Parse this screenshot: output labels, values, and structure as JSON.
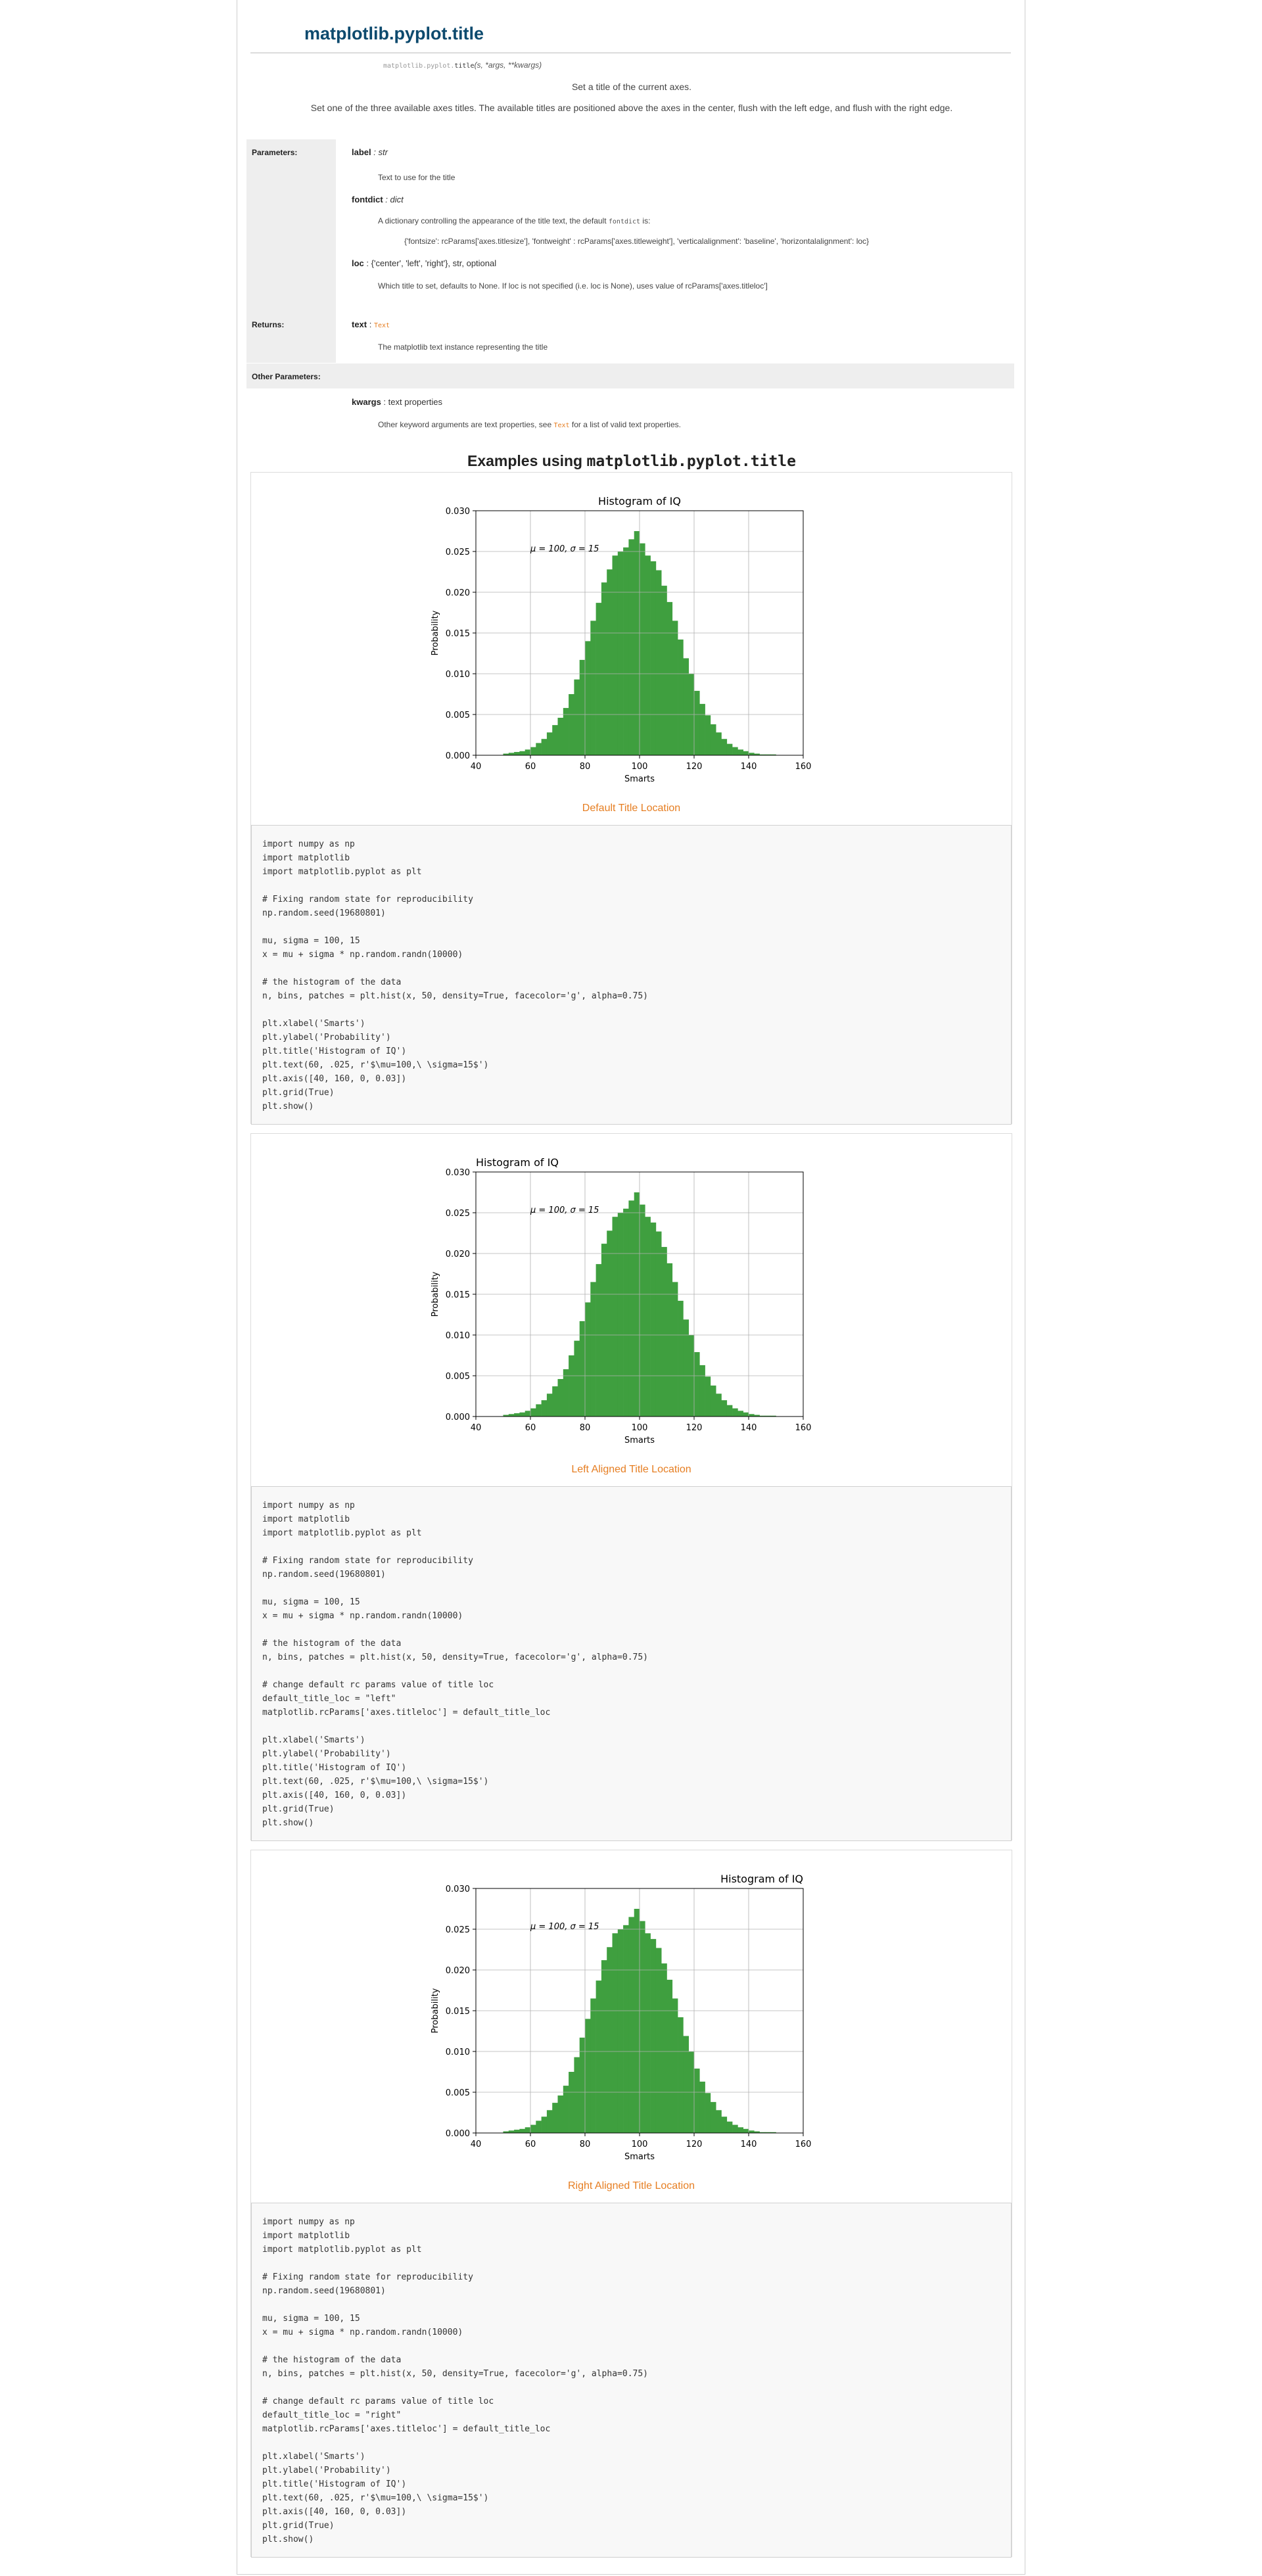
{
  "header": {
    "title": "matplotlib.pyplot.title",
    "signature_module": "matplotlib.pyplot.",
    "signature_name": "title",
    "signature_args": "(s, *args, **kwargs)",
    "description_1": "Set a title of the current axes.",
    "description_2": "Set one of the three available axes titles. The available titles are positioned above the axes in the center, flush with the left edge, and flush with the right edge."
  },
  "params": {
    "parameters_label": "Parameters:",
    "returns_label": "Returns:",
    "other_label": "Other Parameters:",
    "label_name": "label",
    "label_type": " : str",
    "label_desc": "Text to use for the title",
    "fontdict_name": "fontdict",
    "fontdict_type": " : dict",
    "fontdict_desc_pre": "A dictionary controlling the appearance of the title text, the default ",
    "fontdict_desc_code": "fontdict",
    "fontdict_desc_post": " is:",
    "fontdict_value": "{'fontsize': rcParams['axes.titlesize'], 'fontweight' : rcParams['axes.titleweight'], 'verticalalignment': 'baseline', 'horizontalalignment': loc}",
    "loc_name": "loc",
    "loc_type": " : {'center', 'left', 'right'}, str, optional",
    "loc_desc": "Which title to set, defaults to None. If loc is not specified (i.e. loc is None), uses value of rcParams['axes.titleloc']",
    "text_name": "text",
    "text_type_link": "Text",
    "text_desc": "The matplotlib text instance representing the title",
    "kwargs_name": "kwargs",
    "kwargs_type": " : text properties",
    "kwargs_desc_pre": "Other keyword arguments are text properties, see ",
    "kwargs_desc_link": "Text",
    "kwargs_desc_post": " for a list of valid text properties."
  },
  "examples": {
    "heading_pre": "Examples using ",
    "heading_code": "matplotlib.pyplot.title",
    "items": [
      {
        "caption": "Default Title Location",
        "code": "import numpy as np\nimport matplotlib\nimport matplotlib.pyplot as plt\n\n# Fixing random state for reproducibility\nnp.random.seed(19680801)\n\nmu, sigma = 100, 15\nx = mu + sigma * np.random.randn(10000)\n\n# the histogram of the data\nn, bins, patches = plt.hist(x, 50, density=True, facecolor='g', alpha=0.75)\n\nplt.xlabel('Smarts')\nplt.ylabel('Probability')\nplt.title('Histogram of IQ')\nplt.text(60, .025, r'$\\mu=100,\\ \\sigma=15$')\nplt.axis([40, 160, 0, 0.03])\nplt.grid(True)\nplt.show()"
      },
      {
        "caption": "Left Aligned Title Location",
        "code": "import numpy as np\nimport matplotlib\nimport matplotlib.pyplot as plt\n\n# Fixing random state for reproducibility\nnp.random.seed(19680801)\n\nmu, sigma = 100, 15\nx = mu + sigma * np.random.randn(10000)\n\n# the histogram of the data\nn, bins, patches = plt.hist(x, 50, density=True, facecolor='g', alpha=0.75)\n\n# change default rc params value of title loc\ndefault_title_loc = \"left\"\nmatplotlib.rcParams['axes.titleloc'] = default_title_loc\n\nplt.xlabel('Smarts')\nplt.ylabel('Probability')\nplt.title('Histogram of IQ')\nplt.text(60, .025, r'$\\mu=100,\\ \\sigma=15$')\nplt.axis([40, 160, 0, 0.03])\nplt.grid(True)\nplt.show()"
      },
      {
        "caption": "Right Aligned Title Location",
        "code": "import numpy as np\nimport matplotlib\nimport matplotlib.pyplot as plt\n\n# Fixing random state for reproducibility\nnp.random.seed(19680801)\n\nmu, sigma = 100, 15\nx = mu + sigma * np.random.randn(10000)\n\n# the histogram of the data\nn, bins, patches = plt.hist(x, 50, density=True, facecolor='g', alpha=0.75)\n\n# change default rc params value of title loc\ndefault_title_loc = \"right\"\nmatplotlib.rcParams['axes.titleloc'] = default_title_loc\n\nplt.xlabel('Smarts')\nplt.ylabel('Probability')\nplt.title('Histogram of IQ')\nplt.text(60, .025, r'$\\mu=100,\\ \\sigma=15$')\nplt.axis([40, 160, 0, 0.03])\nplt.grid(True)\nplt.show()"
      }
    ]
  },
  "colors": {
    "bar_fill": "#3f9f3f",
    "link": "#e67e22",
    "title": "#0d4a6e"
  },
  "chart_data": [
    {
      "type": "bar",
      "title": "Histogram of IQ",
      "title_loc": "center",
      "xlabel": "Smarts",
      "ylabel": "Probability",
      "annotation": "μ = 100, σ = 15",
      "xlim": [
        40,
        160
      ],
      "ylim": [
        0,
        0.03
      ],
      "xticks": [
        "40",
        "60",
        "80",
        "100",
        "120",
        "140",
        "160"
      ],
      "yticks": [
        "0.000",
        "0.005",
        "0.010",
        "0.015",
        "0.020",
        "0.025",
        "0.030"
      ],
      "grid": true,
      "bin_edges": [
        50.0,
        52.0,
        54.0,
        56.0,
        58.0,
        60.0,
        62.0,
        64.0,
        66.0,
        68.0,
        70.0,
        72.0,
        74.0,
        76.0,
        78.0,
        80.0,
        82.0,
        84.0,
        86.0,
        88.0,
        90.0,
        92.0,
        94.0,
        96.0,
        98.0,
        100.0,
        102.0,
        104.0,
        106.0,
        108.0,
        110.0,
        112.0,
        114.0,
        116.0,
        118.0,
        120.0,
        122.0,
        124.0,
        126.0,
        128.0,
        130.0,
        132.0,
        134.0,
        136.0,
        138.0,
        140.0,
        142.0,
        144.0,
        146.0,
        148.0,
        150.0
      ],
      "values": [
        0.0002,
        0.0003,
        0.0004,
        0.0005,
        0.0007,
        0.001,
        0.0015,
        0.002,
        0.0028,
        0.0037,
        0.0046,
        0.0058,
        0.0075,
        0.0093,
        0.0117,
        0.014,
        0.0165,
        0.0187,
        0.0212,
        0.0228,
        0.0245,
        0.025,
        0.0255,
        0.0265,
        0.0275,
        0.026,
        0.0245,
        0.0238,
        0.0227,
        0.0208,
        0.0188,
        0.0165,
        0.0142,
        0.0119,
        0.01,
        0.0079,
        0.0063,
        0.0049,
        0.0038,
        0.0028,
        0.002,
        0.0014,
        0.001,
        0.0007,
        0.0005,
        0.0003,
        0.0002,
        0.0001,
        0.0001,
        0.0001
      ]
    },
    {
      "type": "bar",
      "title": "Histogram of IQ",
      "title_loc": "left",
      "xlabel": "Smarts",
      "ylabel": "Probability",
      "annotation": "μ = 100, σ = 15",
      "xlim": [
        40,
        160
      ],
      "ylim": [
        0,
        0.03
      ],
      "xticks": [
        "40",
        "60",
        "80",
        "100",
        "120",
        "140",
        "160"
      ],
      "yticks": [
        "0.000",
        "0.005",
        "0.010",
        "0.015",
        "0.020",
        "0.025",
        "0.030"
      ],
      "grid": true,
      "bin_edges": [
        50.0,
        52.0,
        54.0,
        56.0,
        58.0,
        60.0,
        62.0,
        64.0,
        66.0,
        68.0,
        70.0,
        72.0,
        74.0,
        76.0,
        78.0,
        80.0,
        82.0,
        84.0,
        86.0,
        88.0,
        90.0,
        92.0,
        94.0,
        96.0,
        98.0,
        100.0,
        102.0,
        104.0,
        106.0,
        108.0,
        110.0,
        112.0,
        114.0,
        116.0,
        118.0,
        120.0,
        122.0,
        124.0,
        126.0,
        128.0,
        130.0,
        132.0,
        134.0,
        136.0,
        138.0,
        140.0,
        142.0,
        144.0,
        146.0,
        148.0,
        150.0
      ],
      "values": [
        0.0002,
        0.0003,
        0.0004,
        0.0005,
        0.0007,
        0.001,
        0.0015,
        0.002,
        0.0028,
        0.0037,
        0.0046,
        0.0058,
        0.0075,
        0.0093,
        0.0117,
        0.014,
        0.0165,
        0.0187,
        0.0212,
        0.0228,
        0.0245,
        0.025,
        0.0255,
        0.0265,
        0.0275,
        0.026,
        0.0245,
        0.0238,
        0.0227,
        0.0208,
        0.0188,
        0.0165,
        0.0142,
        0.0119,
        0.01,
        0.0079,
        0.0063,
        0.0049,
        0.0038,
        0.0028,
        0.002,
        0.0014,
        0.001,
        0.0007,
        0.0005,
        0.0003,
        0.0002,
        0.0001,
        0.0001,
        0.0001
      ]
    },
    {
      "type": "bar",
      "title": "Histogram of IQ",
      "title_loc": "right",
      "xlabel": "Smarts",
      "ylabel": "Probability",
      "annotation": "μ = 100, σ = 15",
      "xlim": [
        40,
        160
      ],
      "ylim": [
        0,
        0.03
      ],
      "xticks": [
        "40",
        "60",
        "80",
        "100",
        "120",
        "140",
        "160"
      ],
      "yticks": [
        "0.000",
        "0.005",
        "0.010",
        "0.015",
        "0.020",
        "0.025",
        "0.030"
      ],
      "grid": true,
      "bin_edges": [
        50.0,
        52.0,
        54.0,
        56.0,
        58.0,
        60.0,
        62.0,
        64.0,
        66.0,
        68.0,
        70.0,
        72.0,
        74.0,
        76.0,
        78.0,
        80.0,
        82.0,
        84.0,
        86.0,
        88.0,
        90.0,
        92.0,
        94.0,
        96.0,
        98.0,
        100.0,
        102.0,
        104.0,
        106.0,
        108.0,
        110.0,
        112.0,
        114.0,
        116.0,
        118.0,
        120.0,
        122.0,
        124.0,
        126.0,
        128.0,
        130.0,
        132.0,
        134.0,
        136.0,
        138.0,
        140.0,
        142.0,
        144.0,
        146.0,
        148.0,
        150.0
      ],
      "values": [
        0.0002,
        0.0003,
        0.0004,
        0.0005,
        0.0007,
        0.001,
        0.0015,
        0.002,
        0.0028,
        0.0037,
        0.0046,
        0.0058,
        0.0075,
        0.0093,
        0.0117,
        0.014,
        0.0165,
        0.0187,
        0.0212,
        0.0228,
        0.0245,
        0.025,
        0.0255,
        0.0265,
        0.0275,
        0.026,
        0.0245,
        0.0238,
        0.0227,
        0.0208,
        0.0188,
        0.0165,
        0.0142,
        0.0119,
        0.01,
        0.0079,
        0.0063,
        0.0049,
        0.0038,
        0.0028,
        0.002,
        0.0014,
        0.001,
        0.0007,
        0.0005,
        0.0003,
        0.0002,
        0.0001,
        0.0001,
        0.0001
      ]
    }
  ]
}
